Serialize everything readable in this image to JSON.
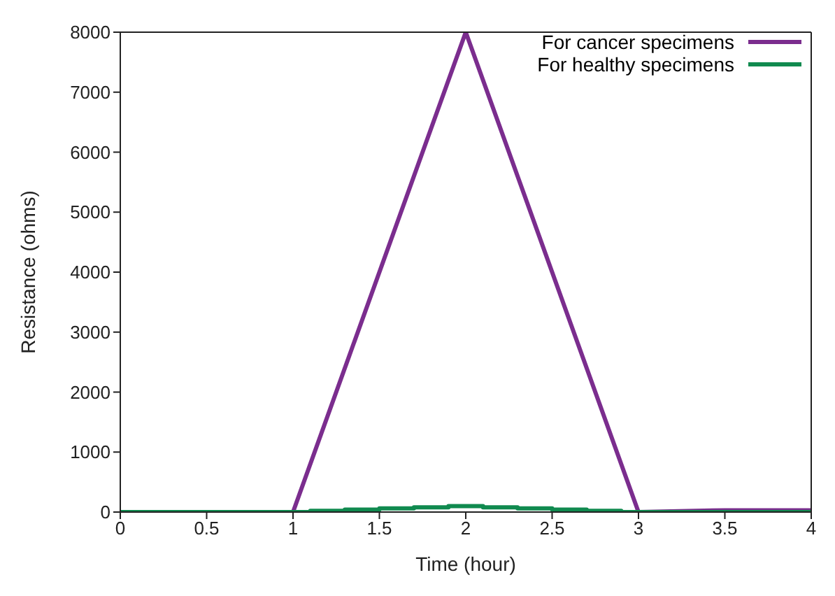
{
  "chart_data": {
    "type": "line",
    "xlabel": "Time (hour)",
    "ylabel": "Resistance (ohms)",
    "xlim": [
      0,
      4
    ],
    "xticks": [
      0,
      0.5,
      1,
      1.5,
      2,
      2.5,
      3,
      3.5,
      4
    ],
    "ylim": [
      0,
      8000
    ],
    "yticks": [
      0,
      1000,
      2000,
      3000,
      4000,
      5000,
      6000,
      7000,
      8000
    ],
    "grid": false,
    "legend": "top right",
    "series": [
      {
        "name": "For cancer specimens",
        "color": "#7b2d8e",
        "x": [
          0,
          1,
          2,
          3,
          3.5,
          4
        ],
        "values": [
          0,
          0,
          8000,
          0,
          30,
          30
        ]
      },
      {
        "name": "For healthy specimens",
        "color": "#108a4f",
        "type": "step",
        "x": [
          0,
          1.1,
          1.3,
          1.5,
          1.7,
          1.9,
          2.1,
          2.3,
          2.5,
          2.7,
          2.9,
          4
        ],
        "values": [
          0,
          20,
          40,
          60,
          80,
          100,
          80,
          60,
          40,
          20,
          0,
          0
        ]
      }
    ]
  }
}
